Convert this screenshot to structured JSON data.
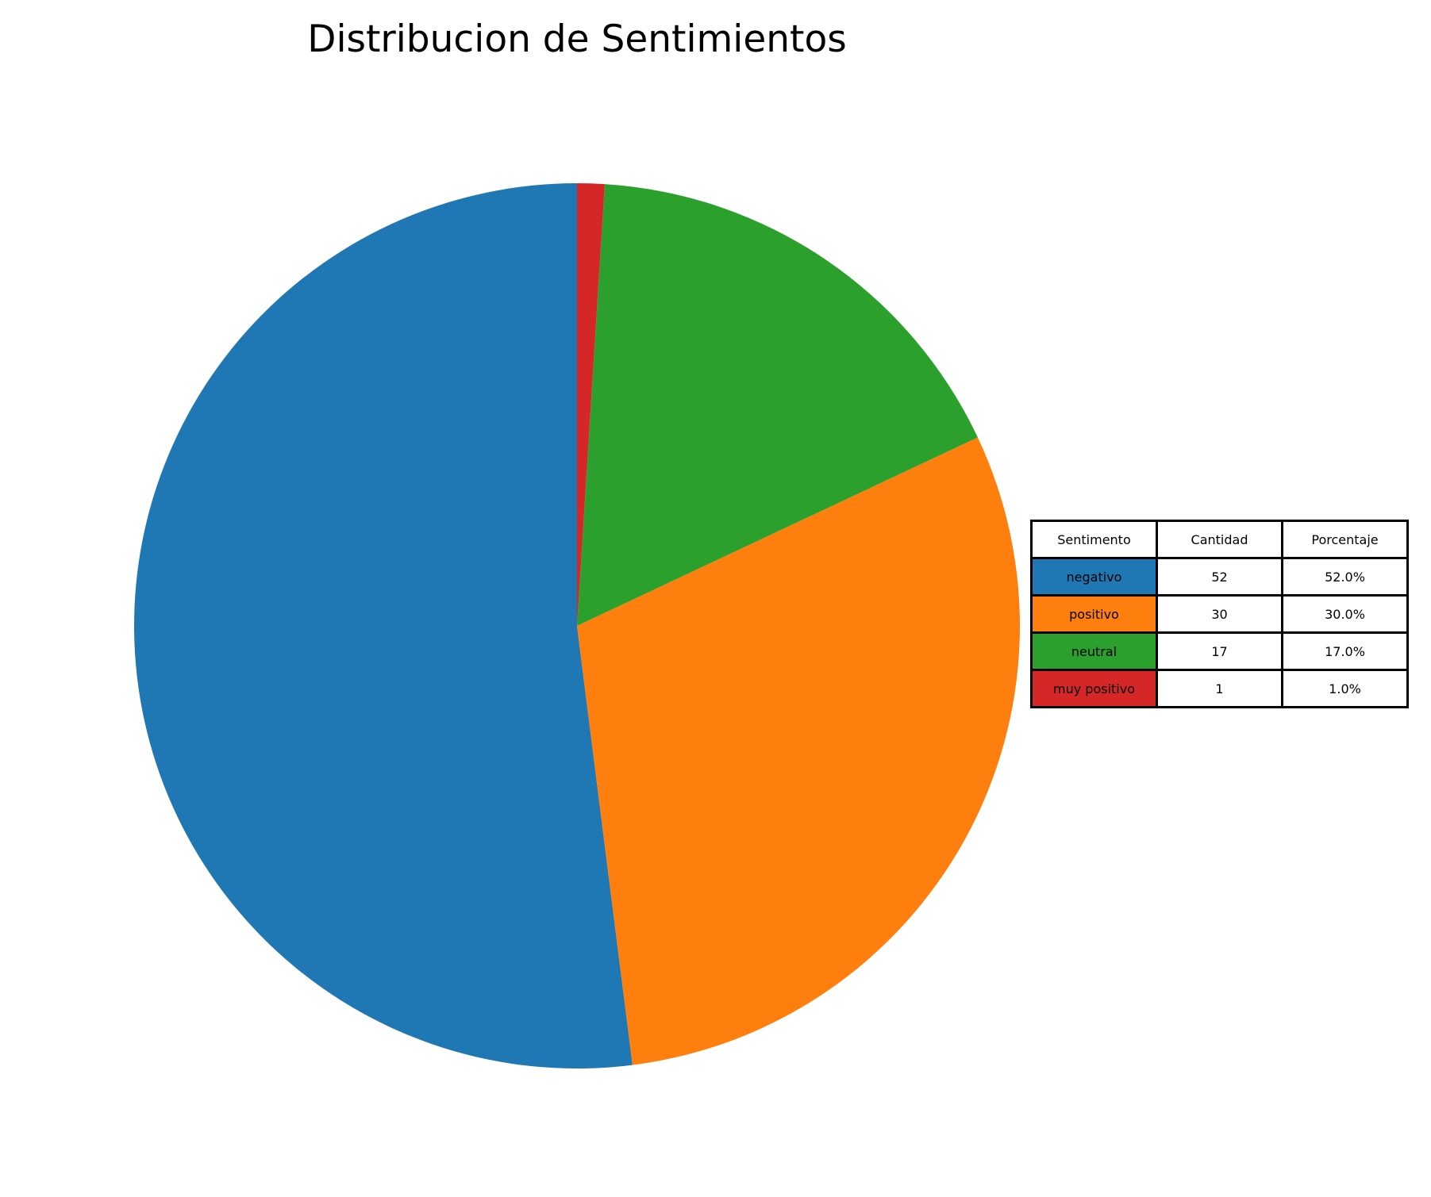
{
  "chart_data": {
    "type": "pie",
    "title": "Distribucion de Sentimientos",
    "start_angle_deg": 90,
    "direction": "counterclockwise",
    "slices": [
      {
        "label": "negativo",
        "value": 52,
        "color": "#1f77b4"
      },
      {
        "label": "positivo",
        "value": 30,
        "color": "#ff7f0e"
      },
      {
        "label": "neutral",
        "value": 17,
        "color": "#2ca02c"
      },
      {
        "label": "muy positivo",
        "value": 1,
        "color": "#d62728"
      }
    ],
    "table": {
      "headers": [
        "Sentimento",
        "Cantidad",
        "Porcentaje"
      ],
      "rows": [
        {
          "label": "negativo",
          "count": "52",
          "percent": "52.0%",
          "color": "#1f77b4"
        },
        {
          "label": "positivo",
          "count": "30",
          "percent": "30.0%",
          "color": "#ff7f0e"
        },
        {
          "label": "neutral",
          "count": "17",
          "percent": "17.0%",
          "color": "#2ca02c"
        },
        {
          "label": "muy positivo",
          "count": "1",
          "percent": "1.0%",
          "color": "#d62728"
        }
      ]
    }
  }
}
